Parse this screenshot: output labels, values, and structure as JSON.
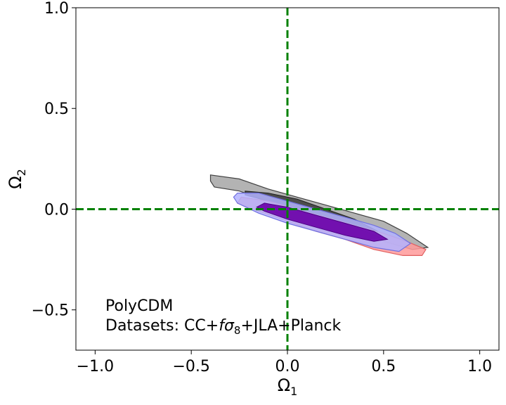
{
  "chart_data": {
    "type": "contour",
    "xlabel_base": "Ω",
    "xlabel_sub": "1",
    "ylabel_base": "Ω",
    "ylabel_sub": "2",
    "xlim": [
      -1.1,
      1.1
    ],
    "ylim": [
      -0.7,
      1.0
    ],
    "xticks": [
      -1.0,
      -0.5,
      0.0,
      0.5,
      1.0
    ],
    "xtick_labels": [
      "−1.0",
      "−0.5",
      "0.0",
      "0.5",
      "1.0"
    ],
    "yticks": [
      -0.5,
      0.0,
      0.5,
      1.0
    ],
    "ytick_labels": [
      "−0.5",
      "0.0",
      "0.5",
      "1.0"
    ],
    "reference_lines": {
      "x": 0.0,
      "y": 0.0,
      "color": "#008000",
      "style": "dashed"
    },
    "annotation": {
      "line1": "PolyCDM",
      "line2_prefix": "Datasets: CC+",
      "line2_f": "f",
      "line2_sigma": "σ",
      "line2_sub": "8",
      "line2_suffix": "+JLA+Planck"
    },
    "contours": [
      {
        "color_outer": "#a6a6a6",
        "edge_outer": "#404040",
        "color_inner": "#404040",
        "edge_inner": "#202020",
        "outer": [
          [
            -0.4,
            0.17
          ],
          [
            -0.25,
            0.15
          ],
          [
            -0.1,
            0.1
          ],
          [
            0.05,
            0.06
          ],
          [
            0.2,
            0.02
          ],
          [
            0.35,
            -0.02
          ],
          [
            0.5,
            -0.06
          ],
          [
            0.62,
            -0.12
          ],
          [
            0.73,
            -0.19
          ],
          [
            0.65,
            -0.2
          ],
          [
            0.5,
            -0.16
          ],
          [
            0.35,
            -0.11
          ],
          [
            0.2,
            -0.06
          ],
          [
            0.05,
            -0.01
          ],
          [
            -0.1,
            0.04
          ],
          [
            -0.25,
            0.09
          ],
          [
            -0.38,
            0.11
          ],
          [
            -0.4,
            0.14
          ]
        ],
        "inner": [
          [
            -0.22,
            0.09
          ],
          [
            -0.1,
            0.08
          ],
          [
            0.05,
            0.05
          ],
          [
            0.2,
            0.0
          ],
          [
            0.35,
            -0.05
          ],
          [
            0.47,
            -0.11
          ],
          [
            0.35,
            -0.09
          ],
          [
            0.2,
            -0.04
          ],
          [
            0.05,
            0.0
          ],
          [
            -0.1,
            0.04
          ],
          [
            -0.22,
            0.07
          ]
        ]
      },
      {
        "color_outer": "#ff9a9a",
        "edge_outer": "#e06060",
        "color_inner": "#c03060",
        "edge_inner": "#a02040",
        "outer": [
          [
            -0.24,
            0.06
          ],
          [
            -0.1,
            0.04
          ],
          [
            0.05,
            0.0
          ],
          [
            0.2,
            -0.04
          ],
          [
            0.35,
            -0.08
          ],
          [
            0.5,
            -0.12
          ],
          [
            0.62,
            -0.16
          ],
          [
            0.72,
            -0.2
          ],
          [
            0.7,
            -0.23
          ],
          [
            0.6,
            -0.23
          ],
          [
            0.45,
            -0.2
          ],
          [
            0.3,
            -0.15
          ],
          [
            0.15,
            -0.11
          ],
          [
            0.0,
            -0.06
          ],
          [
            -0.15,
            -0.01
          ],
          [
            -0.26,
            0.03
          ]
        ],
        "inner": [
          [
            -0.1,
            0.02
          ],
          [
            0.05,
            -0.01
          ],
          [
            0.2,
            -0.05
          ],
          [
            0.35,
            -0.09
          ],
          [
            0.48,
            -0.14
          ],
          [
            0.4,
            -0.15
          ],
          [
            0.25,
            -0.11
          ],
          [
            0.1,
            -0.07
          ],
          [
            -0.05,
            -0.02
          ],
          [
            -0.12,
            0.0
          ]
        ]
      },
      {
        "color_outer": "#b3b3ff",
        "edge_outer": "#7070e0",
        "color_inner": "#6a00a8",
        "edge_inner": "#4b0082",
        "outer": [
          [
            -0.26,
            0.08
          ],
          [
            -0.15,
            0.08
          ],
          [
            0.0,
            0.04
          ],
          [
            0.15,
            0.0
          ],
          [
            0.3,
            -0.04
          ],
          [
            0.45,
            -0.08
          ],
          [
            0.56,
            -0.12
          ],
          [
            0.64,
            -0.17
          ],
          [
            0.58,
            -0.21
          ],
          [
            0.45,
            -0.19
          ],
          [
            0.3,
            -0.15
          ],
          [
            0.15,
            -0.11
          ],
          [
            0.0,
            -0.07
          ],
          [
            -0.15,
            -0.02
          ],
          [
            -0.26,
            0.03
          ],
          [
            -0.28,
            0.06
          ]
        ],
        "inner": [
          [
            -0.12,
            0.03
          ],
          [
            0.0,
            0.01
          ],
          [
            0.15,
            -0.03
          ],
          [
            0.3,
            -0.07
          ],
          [
            0.45,
            -0.11
          ],
          [
            0.52,
            -0.15
          ],
          [
            0.45,
            -0.16
          ],
          [
            0.3,
            -0.13
          ],
          [
            0.15,
            -0.09
          ],
          [
            0.0,
            -0.05
          ],
          [
            -0.12,
            -0.01
          ],
          [
            -0.16,
            0.01
          ]
        ]
      }
    ]
  }
}
